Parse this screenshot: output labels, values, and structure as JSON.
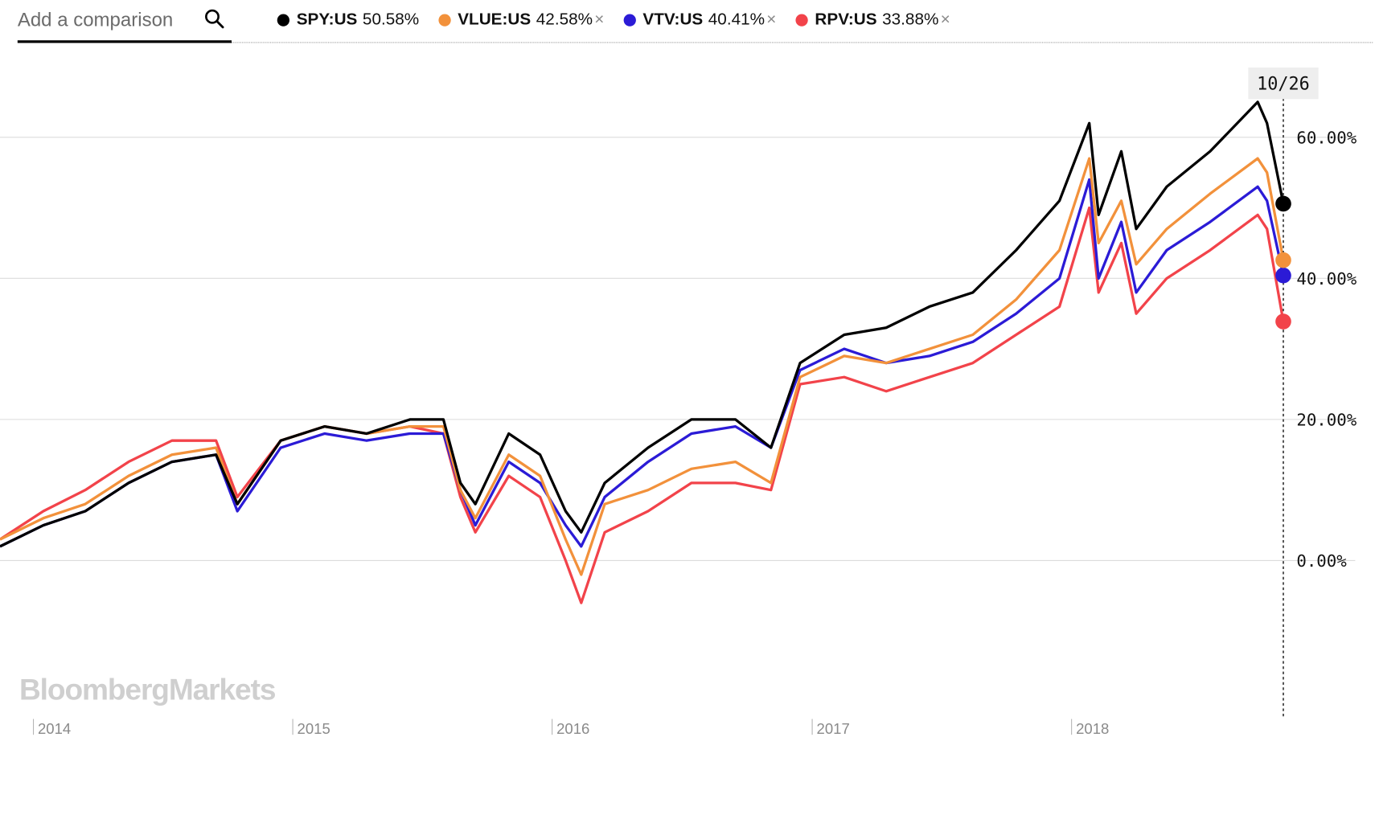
{
  "search": {
    "placeholder": "Add a comparison"
  },
  "legend": [
    {
      "ticker": "SPY:US",
      "value": "50.58%",
      "color": "#000000",
      "removable": false
    },
    {
      "ticker": "VLUE:US",
      "value": "42.58%",
      "color": "#f2913b",
      "removable": true
    },
    {
      "ticker": "VTV:US",
      "value": "40.41%",
      "color": "#2b1bd6",
      "removable": true
    },
    {
      "ticker": "RPV:US",
      "value": "33.88%",
      "color": "#f2434a",
      "removable": true
    }
  ],
  "remove_glyph": "×",
  "date_tag": "10/26",
  "watermark": "BloombergMarkets",
  "chart_data": {
    "type": "line",
    "title": "",
    "xlabel": "",
    "ylabel": "",
    "x_tick_labels": [
      "2014",
      "2015",
      "2016",
      "2017",
      "2018"
    ],
    "y_tick_labels": [
      "0.00%",
      "20.00%",
      "40.00%",
      "60.00%"
    ],
    "y_ticks": [
      0,
      20,
      40,
      60
    ],
    "ylim": [
      -15,
      72
    ],
    "xlim": [
      "2013-11-15",
      "2018-10-26"
    ],
    "grid": true,
    "legend_position": "top",
    "x": [
      "2013-11-15",
      "2014-01-15",
      "2014-03-15",
      "2014-05-15",
      "2014-07-15",
      "2014-09-15",
      "2014-10-15",
      "2014-12-15",
      "2015-02-15",
      "2015-04-15",
      "2015-06-15",
      "2015-08-01",
      "2015-08-25",
      "2015-09-15",
      "2015-11-01",
      "2015-12-15",
      "2016-01-20",
      "2016-02-11",
      "2016-03-15",
      "2016-05-15",
      "2016-07-15",
      "2016-09-15",
      "2016-11-04",
      "2016-12-15",
      "2017-02-15",
      "2017-04-15",
      "2017-06-15",
      "2017-08-15",
      "2017-10-15",
      "2017-12-15",
      "2018-01-26",
      "2018-02-08",
      "2018-03-12",
      "2018-04-02",
      "2018-05-15",
      "2018-07-15",
      "2018-09-20",
      "2018-10-03",
      "2018-10-26"
    ],
    "series": [
      {
        "name": "SPY:US",
        "values": [
          2,
          5,
          7,
          11,
          14,
          15,
          8,
          17,
          19,
          18,
          20,
          20,
          11,
          8,
          18,
          15,
          7,
          4,
          11,
          16,
          20,
          20,
          16,
          28,
          32,
          33,
          36,
          38,
          44,
          51,
          62,
          49,
          58,
          47,
          53,
          58,
          65,
          62,
          50.58
        ]
      },
      {
        "name": "VLUE:US",
        "values": [
          3,
          6,
          8,
          12,
          15,
          16,
          8,
          17,
          19,
          18,
          19,
          19,
          10,
          6,
          15,
          12,
          3,
          -2,
          8,
          10,
          13,
          14,
          11,
          26,
          29,
          28,
          30,
          32,
          37,
          44,
          57,
          45,
          51,
          42,
          47,
          52,
          57,
          55,
          42.58
        ]
      },
      {
        "name": "VTV:US",
        "values": [
          2,
          5,
          7,
          11,
          14,
          15,
          7,
          16,
          18,
          17,
          18,
          18,
          10,
          5,
          14,
          11,
          5,
          2,
          9,
          14,
          18,
          19,
          16,
          27,
          30,
          28,
          29,
          31,
          35,
          40,
          54,
          40,
          48,
          38,
          44,
          48,
          53,
          51,
          40.41
        ]
      },
      {
        "name": "RPV:US",
        "values": [
          3,
          7,
          10,
          14,
          17,
          17,
          9,
          17,
          19,
          18,
          19,
          18,
          9,
          4,
          12,
          9,
          0,
          -6,
          4,
          7,
          11,
          11,
          10,
          25,
          26,
          24,
          26,
          28,
          32,
          36,
          50,
          38,
          45,
          35,
          40,
          44,
          49,
          47,
          33.88
        ]
      }
    ]
  }
}
